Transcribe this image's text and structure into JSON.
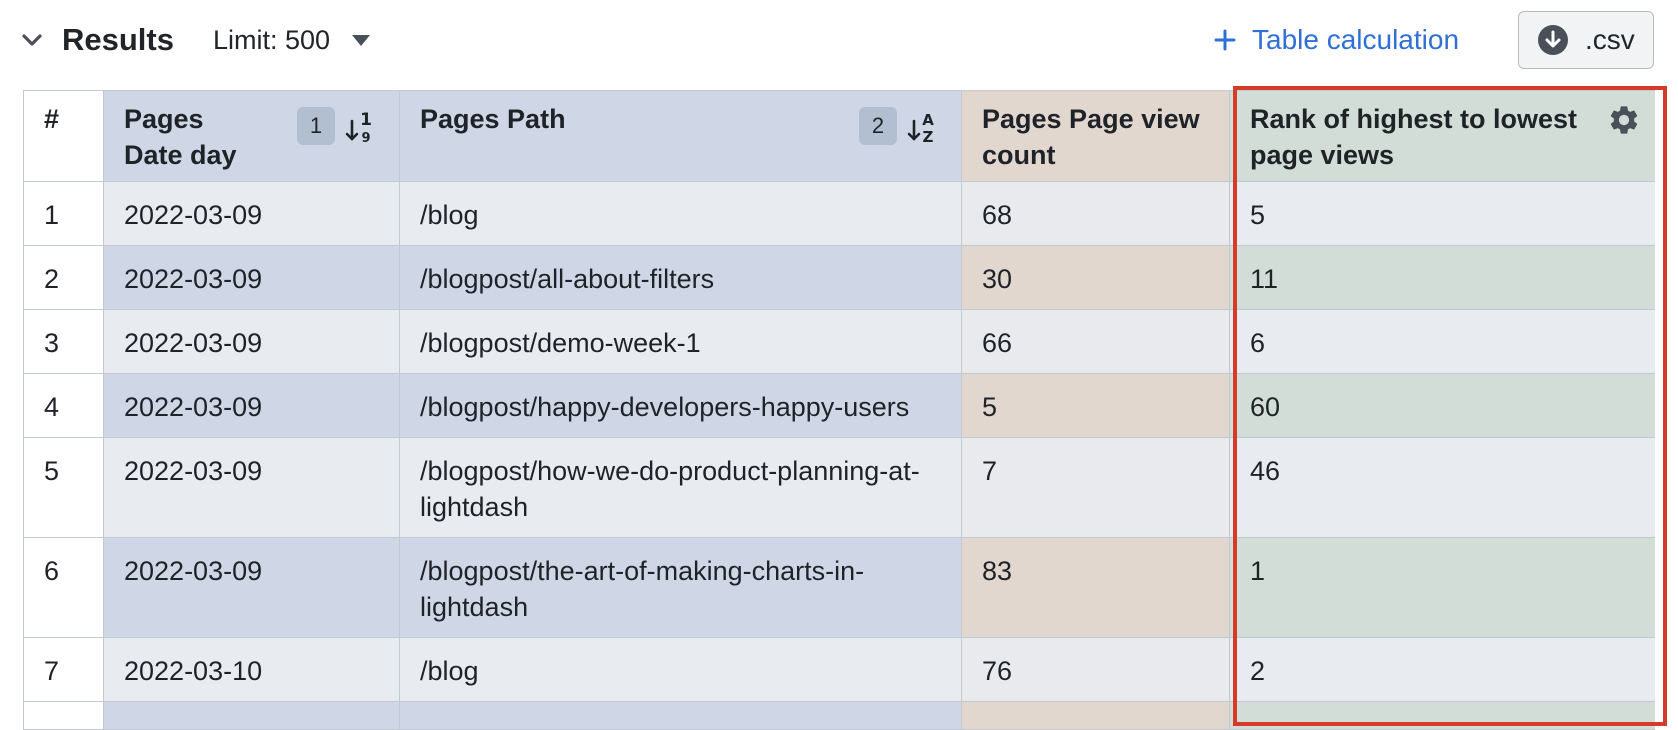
{
  "header": {
    "title": "Results",
    "limit_label": "Limit: 500",
    "table_calc_label": "Table calculation",
    "csv_label": ".csv"
  },
  "table": {
    "columns": [
      {
        "label": "#"
      },
      {
        "label": "Pages Date day",
        "sort_order": "1"
      },
      {
        "label": "Pages Path",
        "sort_order": "2"
      },
      {
        "label": "Pages Page view count"
      },
      {
        "label": "Rank of highest to lowest page views"
      }
    ],
    "rows": [
      {
        "idx": "1",
        "date": "2022-03-09",
        "path": "/blog",
        "views": "68",
        "rank": "5"
      },
      {
        "idx": "2",
        "date": "2022-03-09",
        "path": "/blogpost/all-about-filters",
        "views": "30",
        "rank": "11"
      },
      {
        "idx": "3",
        "date": "2022-03-09",
        "path": "/blogpost/demo-week-1",
        "views": "66",
        "rank": "6"
      },
      {
        "idx": "4",
        "date": "2022-03-09",
        "path": "/blogpost/happy-developers-happy-users",
        "views": "5",
        "rank": "60"
      },
      {
        "idx": "5",
        "date": "2022-03-09",
        "path": "/blogpost/how-we-do-product-planning-at-lightdash",
        "views": "7",
        "rank": "46"
      },
      {
        "idx": "6",
        "date": "2022-03-09",
        "path": "/blogpost/the-art-of-making-charts-in-lightdash",
        "views": "83",
        "rank": "1"
      },
      {
        "idx": "7",
        "date": "2022-03-10",
        "path": "/blog",
        "views": "76",
        "rank": "2"
      },
      {
        "idx": "",
        "date": "",
        "path": "",
        "views": "",
        "rank": ""
      }
    ]
  },
  "icons": {
    "collapse": "chevron-down-icon",
    "plus": "plus-icon",
    "download": "download-icon",
    "sort_numeric": "sort-ascending-numeric-icon",
    "sort_alpha": "sort-ascending-alpha-icon",
    "gear": "gear-icon"
  },
  "colors": {
    "accent": "#2f6fd6",
    "highlight": "#d63b2a",
    "dimension_header": "#cfd7e6",
    "metric_header": "#e2d7cf",
    "calculation_header": "#d3ddd7"
  }
}
